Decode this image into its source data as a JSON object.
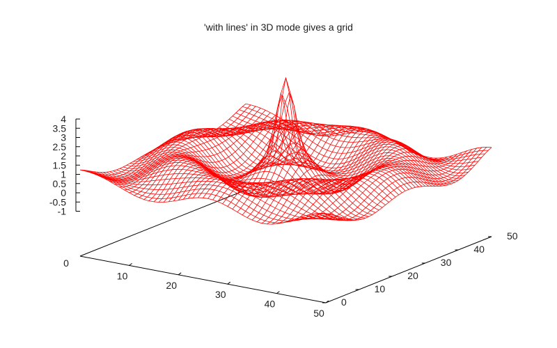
{
  "chart_data": {
    "type": "surface-3d-mesh",
    "title": "'with lines' in 3D mode gives a grid",
    "style": "with lines",
    "grid_resolution": 50,
    "x_range": [
      0,
      50
    ],
    "y_range": [
      0,
      50
    ],
    "z_range": [
      -1,
      4
    ],
    "x_ticks": [
      10,
      20,
      30,
      40,
      50
    ],
    "y_ticks": [
      0,
      10,
      20,
      30,
      40,
      50
    ],
    "z_ticks": [
      "4",
      "3.5",
      "3",
      "2.5",
      "2",
      "1.5",
      "1",
      "0.5",
      "0",
      "-0.5",
      "-1"
    ],
    "x_origin_label": "0",
    "series_color": "#ff0000",
    "axis_color": "#000000"
  }
}
